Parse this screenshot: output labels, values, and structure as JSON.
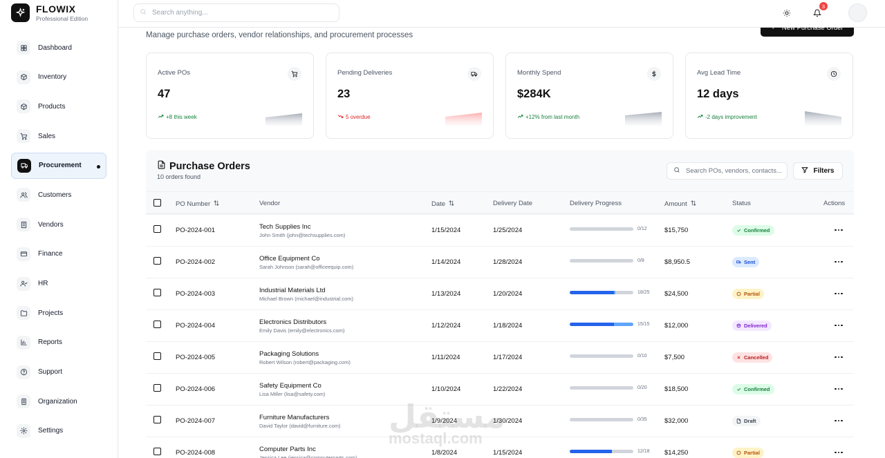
{
  "brand": {
    "name": "FLOWIX",
    "edition": "Professional Edition"
  },
  "sidebar": {
    "items": [
      {
        "label": "Dashboard",
        "icon": "dashboard-icon"
      },
      {
        "label": "Inventory",
        "icon": "box-icon"
      },
      {
        "label": "Products",
        "icon": "cube-icon"
      },
      {
        "label": "Sales",
        "icon": "cart-icon"
      },
      {
        "label": "Procurement",
        "icon": "truck-icon",
        "active": true
      },
      {
        "label": "Customers",
        "icon": "users-icon"
      },
      {
        "label": "Vendors",
        "icon": "building-icon"
      },
      {
        "label": "Finance",
        "icon": "wallet-icon"
      },
      {
        "label": "HR",
        "icon": "user-check-icon"
      },
      {
        "label": "Projects",
        "icon": "folder-icon"
      },
      {
        "label": "Reports",
        "icon": "chart-icon"
      },
      {
        "label": "Support",
        "icon": "help-icon"
      },
      {
        "label": "Organization",
        "icon": "office-icon"
      },
      {
        "label": "Settings",
        "icon": "gear-icon"
      }
    ]
  },
  "topbar": {
    "search_placeholder": "Search anything...",
    "notification_count": "3"
  },
  "header": {
    "subtitle": "Manage purchase orders, vendor relationships, and procurement processes",
    "new_button": "New Purchase Order"
  },
  "stats": [
    {
      "label": "Active POs",
      "value": "47",
      "trend": "+8 this week",
      "trend_dir": "up",
      "icon": "cart-icon"
    },
    {
      "label": "Pending Deliveries",
      "value": "23",
      "trend": "5 overdue",
      "trend_dir": "down",
      "icon": "truck-icon"
    },
    {
      "label": "Monthly Spend",
      "value": "$284K",
      "trend": "+12% from last month",
      "trend_dir": "up",
      "icon": "dollar-icon"
    },
    {
      "label": "Avg Lead Time",
      "value": "12 days",
      "trend": "-2 days improvement",
      "trend_dir": "up",
      "icon": "clock-icon"
    }
  ],
  "panel": {
    "title": "Purchase Orders",
    "count": "10 orders found",
    "search_placeholder": "Search POs, vendors, contacts...",
    "filters_label": "Filters"
  },
  "table": {
    "headers": {
      "po": "PO Number",
      "vendor": "Vendor",
      "date": "Date",
      "delivery": "Delivery Date",
      "progress": "Delivery Progress",
      "amount": "Amount",
      "status": "Status",
      "actions": "Actions"
    },
    "rows": [
      {
        "po": "PO-2024-001",
        "vendor": "Tech Supplies Inc",
        "contact": "John Smith (john@techsupplies.com)",
        "date": "1/15/2024",
        "delivery": "1/25/2024",
        "received": 0,
        "ordered": 12,
        "progress": "0/12",
        "amount": "$15,750",
        "status": "Confirmed",
        "status_key": "confirmed"
      },
      {
        "po": "PO-2024-002",
        "vendor": "Office Equipment Co",
        "contact": "Sarah Johnson (sarah@officeequip.com)",
        "date": "1/14/2024",
        "delivery": "1/28/2024",
        "received": 0,
        "ordered": 8,
        "progress": "0/8",
        "amount": "$8,950.5",
        "status": "Sent",
        "status_key": "sent"
      },
      {
        "po": "PO-2024-003",
        "vendor": "Industrial Materials Ltd",
        "contact": "Michael Brown (michael@industrial.com)",
        "date": "1/13/2024",
        "delivery": "1/20/2024",
        "received": 18,
        "ordered": 25,
        "progress": "18/25",
        "amount": "$24,500",
        "status": "Partial",
        "status_key": "partial"
      },
      {
        "po": "PO-2024-004",
        "vendor": "Electronics Distributors",
        "contact": "Emily Davis (emily@electronics.com)",
        "date": "1/12/2024",
        "delivery": "1/18/2024",
        "received": 15,
        "ordered": 15,
        "progress": "15/15",
        "amount": "$12,000",
        "status": "Delivered",
        "status_key": "delivered"
      },
      {
        "po": "PO-2024-005",
        "vendor": "Packaging Solutions",
        "contact": "Robert Wilson (robert@packaging.com)",
        "date": "1/11/2024",
        "delivery": "1/17/2024",
        "received": 0,
        "ordered": 10,
        "progress": "0/10",
        "amount": "$7,500",
        "status": "Cancelled",
        "status_key": "cancelled"
      },
      {
        "po": "PO-2024-006",
        "vendor": "Safety Equipment Co",
        "contact": "Lisa Miller (lisa@safety.com)",
        "date": "1/10/2024",
        "delivery": "1/22/2024",
        "received": 0,
        "ordered": 20,
        "progress": "0/20",
        "amount": "$18,500",
        "status": "Confirmed",
        "status_key": "confirmed"
      },
      {
        "po": "PO-2024-007",
        "vendor": "Furniture Manufacturers",
        "contact": "David Taylor (david@furniture.com)",
        "date": "1/9/2024",
        "delivery": "1/30/2024",
        "received": 0,
        "ordered": 35,
        "progress": "0/35",
        "amount": "$32,000",
        "status": "Draft",
        "status_key": "draft"
      },
      {
        "po": "PO-2024-008",
        "vendor": "Computer Parts Inc",
        "contact": "Jessica Lee (jessica@computerparts.com)",
        "date": "1/8/2024",
        "delivery": "1/15/2024",
        "received": 12,
        "ordered": 18,
        "progress": "12/18",
        "amount": "$14,250",
        "status": "Partial",
        "status_key": "partial"
      }
    ]
  },
  "status_colors": {
    "confirmed": {
      "bg": "#dcfce7",
      "fg": "#15803d"
    },
    "sent": {
      "bg": "#dbeafe",
      "fg": "#1d4ed8"
    },
    "partial": {
      "bg": "#fef3c7",
      "fg": "#b45309"
    },
    "delivered": {
      "bg": "#f3e8ff",
      "fg": "#7e22ce"
    },
    "cancelled": {
      "bg": "#fee2e2",
      "fg": "#b91c1c"
    },
    "draft": {
      "bg": "#f3f4f6",
      "fg": "#374151"
    }
  },
  "watermark": {
    "text": "مستقل",
    "sub": "mostaql.com"
  }
}
